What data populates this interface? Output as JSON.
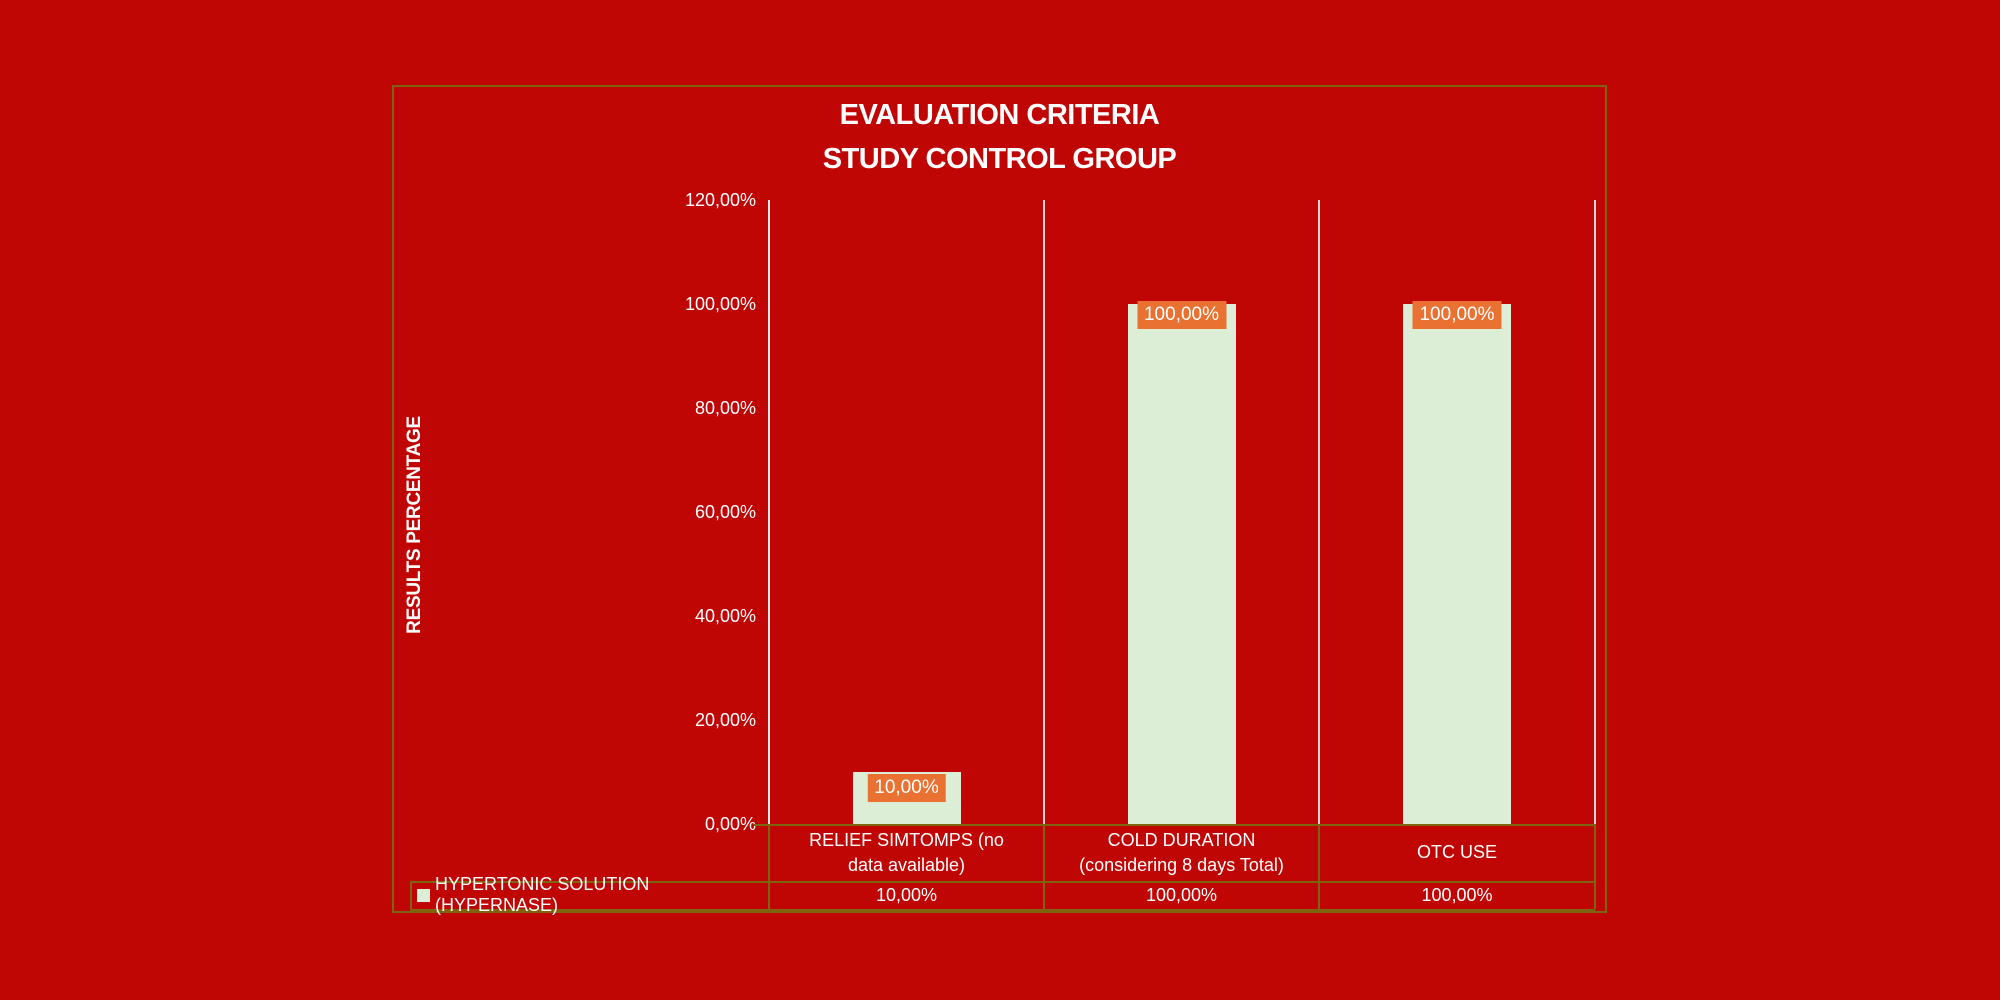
{
  "page": {
    "background_color": "#C00505"
  },
  "chart_data": {
    "type": "bar",
    "title_lines": [
      "EVALUATION CRITERIA",
      "STUDY CONTROL GROUP"
    ],
    "title": "EVALUATION CRITERIA STUDY CONTROL GROUP",
    "ylabel": "RESULTS PERCENTAGE",
    "xlabel": "",
    "categories": [
      "RELIEF SIMTOMPS (no data available)",
      "COLD DURATION (considering 8 days Total)",
      "OTC USE"
    ],
    "category_label_lines": [
      [
        "RELIEF SIMTOMPS (no",
        "data available)"
      ],
      [
        "COLD DURATION",
        "(considering 8 days Total)"
      ],
      [
        "OTC USE"
      ]
    ],
    "series": [
      {
        "name": "HYPERTONIC SOLUTION (HYPERNASE)",
        "values": [
          10,
          100,
          100
        ],
        "value_labels": [
          "10,00%",
          "100,00%",
          "100,00%"
        ]
      }
    ],
    "yticks": [
      {
        "value": 0,
        "label": "0,00%"
      },
      {
        "value": 20,
        "label": "20,00%"
      },
      {
        "value": 40,
        "label": "40,00%"
      },
      {
        "value": 60,
        "label": "60,00%"
      },
      {
        "value": 80,
        "label": "80,00%"
      },
      {
        "value": 100,
        "label": "100,00%"
      },
      {
        "value": 120,
        "label": "120,00%"
      }
    ],
    "ylim": [
      0,
      120
    ],
    "grid": "vertical-category-separators-only",
    "legend_position": "bottom-data-table",
    "data_table": {
      "row_label": "HYPERTONIC SOLUTION (HYPERNASE)",
      "row_values": [
        "10,00%",
        "100,00%",
        "100,00%"
      ]
    },
    "colors": {
      "background": "#C00505",
      "chart_border": "#7F6410",
      "table_border": "#7F6410",
      "bar_fill": "#DCEFD6",
      "legend_swatch": "#DCEFD6",
      "data_label_bg": "#E97132",
      "text": "#FFFFFF",
      "axis_line": "#F0ECEC",
      "category_separator": "#DDD3D3"
    }
  }
}
